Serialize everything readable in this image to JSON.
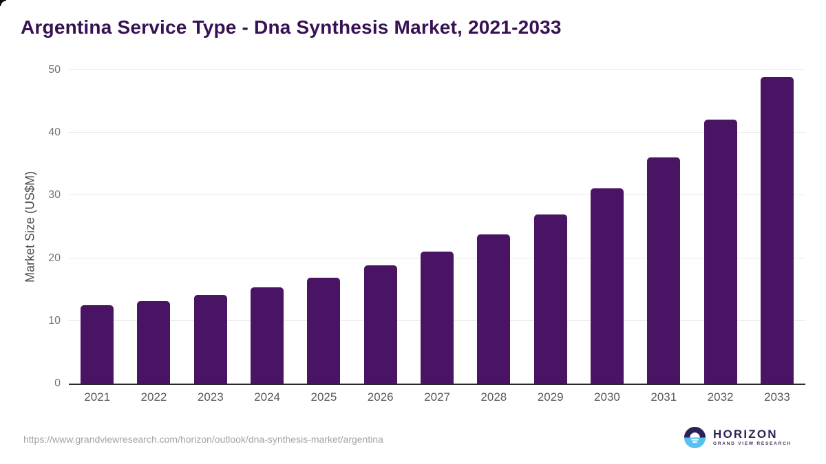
{
  "page": {
    "title": "Argentina Service Type - Dna Synthesis Market, 2021-2033",
    "source_url": "https://www.grandviewresearch.com/horizon/outlook/dna-synthesis-market/argentina"
  },
  "logo": {
    "name": "HORIZON",
    "subtitle": "GRAND VIEW RESEARCH"
  },
  "colors": {
    "bar": "#4a1464",
    "title": "#371153",
    "axis_line": "#2b2b2b",
    "grid": "#e8e8e8",
    "tick": "#757575",
    "xlabel": "#595959",
    "axis_title": "#4d4d4d",
    "url": "#a3a3a3",
    "logo_dark": "#2e2156",
    "logo_blue": "#56c1ef"
  },
  "chart_data": {
    "type": "bar",
    "title": "Argentina Service Type - Dna Synthesis Market, 2021-2033",
    "categories": [
      "2021",
      "2022",
      "2023",
      "2024",
      "2025",
      "2026",
      "2027",
      "2028",
      "2029",
      "2030",
      "2031",
      "2032",
      "2033"
    ],
    "values": [
      12.5,
      13.2,
      14.1,
      15.4,
      16.9,
      18.9,
      21.1,
      23.8,
      27.0,
      31.2,
      36.1,
      42.1,
      48.9
    ],
    "xlabel": "",
    "ylabel": "Market Size (US$M)",
    "ylim": [
      0,
      50
    ],
    "yticks": [
      0,
      10,
      20,
      30,
      40,
      50
    ],
    "grid": "horizontal",
    "legend": "none",
    "bar_color": "#4a1464"
  }
}
